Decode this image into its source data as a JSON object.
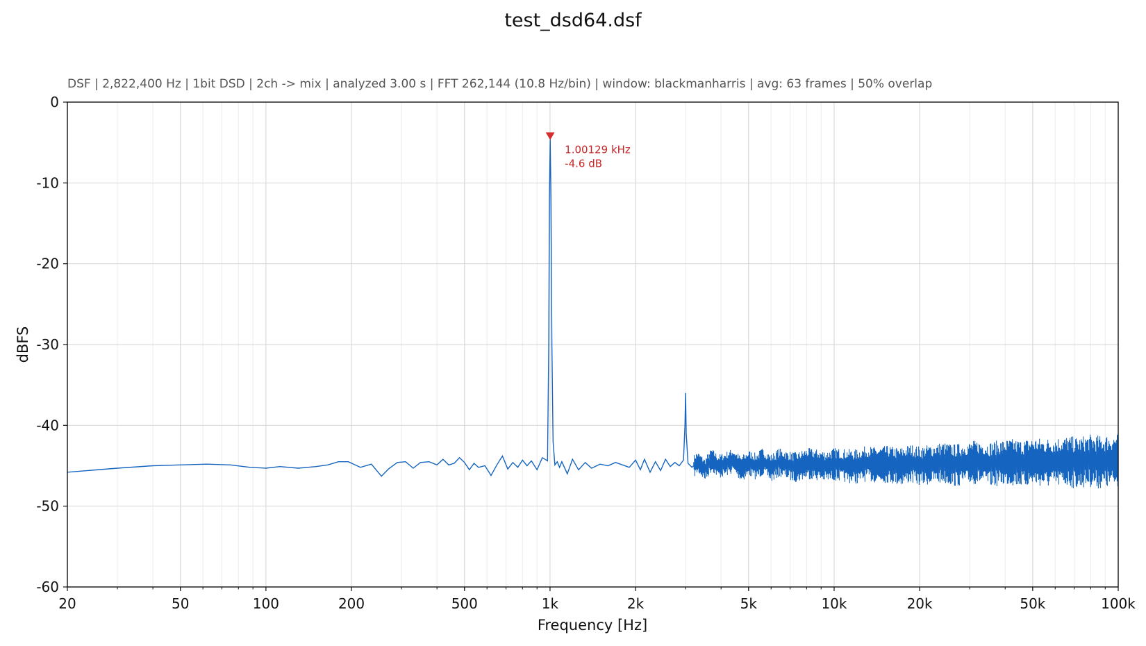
{
  "chart_data": {
    "type": "line",
    "title": "test_dsd64.dsf",
    "subtitle": "DSF | 2,822,400 Hz | 1bit DSD | 2ch -> mix | analyzed 3.00 s | FFT 262,144 (10.8 Hz/bin) | window: blackmanharris | avg: 63 frames | 50% overlap",
    "xlabel": "Frequency [Hz]",
    "ylabel": "dBFS",
    "xscale": "log",
    "xlim": [
      20,
      100000
    ],
    "ylim": [
      -60,
      0
    ],
    "grid": true,
    "x_ticks": [
      {
        "value": 20,
        "label": "20"
      },
      {
        "value": 50,
        "label": "50"
      },
      {
        "value": 100,
        "label": "100"
      },
      {
        "value": 200,
        "label": "200"
      },
      {
        "value": 500,
        "label": "500"
      },
      {
        "value": 1000,
        "label": "1k"
      },
      {
        "value": 2000,
        "label": "2k"
      },
      {
        "value": 5000,
        "label": "5k"
      },
      {
        "value": 10000,
        "label": "10k"
      },
      {
        "value": 20000,
        "label": "20k"
      },
      {
        "value": 50000,
        "label": "50k"
      },
      {
        "value": 100000,
        "label": "100k"
      }
    ],
    "y_ticks": [
      {
        "value": 0,
        "label": "0"
      },
      {
        "value": -10,
        "label": "-10"
      },
      {
        "value": -20,
        "label": "-20"
      },
      {
        "value": -30,
        "label": "-30"
      },
      {
        "value": -40,
        "label": "-40"
      },
      {
        "value": -50,
        "label": "-50"
      },
      {
        "value": -60,
        "label": "-60"
      }
    ],
    "series": [
      {
        "color": "#1565c0",
        "x": [
          20,
          30,
          40,
          50,
          62,
          75,
          88,
          100,
          112,
          130,
          150,
          165,
          180,
          195,
          215,
          235,
          255,
          270,
          290,
          310,
          330,
          350,
          375,
          400,
          420,
          440,
          460,
          480,
          500,
          520,
          540,
          560,
          590,
          620,
          650,
          680,
          710,
          740,
          770,
          800,
          830,
          860,
          900,
          940,
          960,
          980,
          990,
          995,
          1001.29,
          1008,
          1015,
          1025,
          1040,
          1060,
          1080,
          1100,
          1150,
          1200,
          1260,
          1330,
          1400,
          1500,
          1600,
          1700,
          1800,
          1900,
          2000,
          2080,
          2150,
          2250,
          2350,
          2450,
          2550,
          2650,
          2750,
          2850,
          2950,
          2985,
          3000,
          3015,
          3060,
          3160,
          3300,
          3500,
          3700,
          3900,
          4100,
          4400,
          4700,
          5000,
          5300,
          5600,
          6000,
          6400,
          6900,
          7400,
          8000,
          8700,
          9400,
          10000,
          11000,
          12000,
          13000,
          14000,
          15500,
          17000,
          18500,
          20000,
          22000,
          24000,
          26500,
          29000,
          32000,
          35000,
          38500,
          42000,
          46000,
          50000,
          55000,
          60000,
          66000,
          72000,
          79000,
          86000,
          93000,
          100000
        ],
        "y": [
          -45.8,
          -45.3,
          -45.0,
          -44.9,
          -44.8,
          -44.9,
          -45.2,
          -45.3,
          -45.1,
          -45.3,
          -45.1,
          -44.9,
          -44.5,
          -44.5,
          -45.2,
          -44.8,
          -46.3,
          -45.4,
          -44.6,
          -44.5,
          -45.3,
          -44.6,
          -44.5,
          -44.9,
          -44.2,
          -44.9,
          -44.7,
          -44.0,
          -44.6,
          -45.5,
          -44.7,
          -45.2,
          -45.0,
          -46.2,
          -44.9,
          -43.8,
          -45.4,
          -44.6,
          -45.2,
          -44.3,
          -45.0,
          -44.4,
          -45.5,
          -44.0,
          -44.2,
          -44.4,
          -30.0,
          -12.0,
          -4.6,
          -12.0,
          -30.0,
          -42.0,
          -44.9,
          -44.5,
          -45.2,
          -44.5,
          -46.0,
          -44.2,
          -45.5,
          -44.6,
          -45.3,
          -44.8,
          -45.0,
          -44.6,
          -44.9,
          -45.2,
          -44.3,
          -45.5,
          -44.2,
          -45.8,
          -44.5,
          -45.6,
          -44.2,
          -45.1,
          -44.6,
          -45.0,
          -44.3,
          -40.0,
          -36.0,
          -41.0,
          -44.7,
          -45.2,
          -44.5,
          -45.4,
          -44.2,
          -45.0,
          -44.8,
          -44.3,
          -45.3,
          -44.6,
          -45.0,
          -44.4,
          -45.2,
          -44.5,
          -44.9,
          -45.1,
          -44.6,
          -44.8,
          -45.0,
          -44.7,
          -44.9,
          -45.0,
          -44.6,
          -44.8,
          -44.7,
          -45.0,
          -44.6,
          -44.9,
          -44.7,
          -44.5,
          -44.8,
          -44.6,
          -44.4,
          -44.7,
          -44.5,
          -44.4,
          -44.6,
          -44.3,
          -44.5,
          -44.4,
          -44.3,
          -44.5,
          -44.2,
          -44.4,
          -44.3,
          -44.2
        ],
        "noise_band_db": 1.6
      }
    ],
    "peak_annotation": {
      "x": 1001.29,
      "y": -4.6,
      "line1": "1.00129 kHz",
      "line2": "-4.6 dB",
      "color": "#c62828"
    }
  }
}
